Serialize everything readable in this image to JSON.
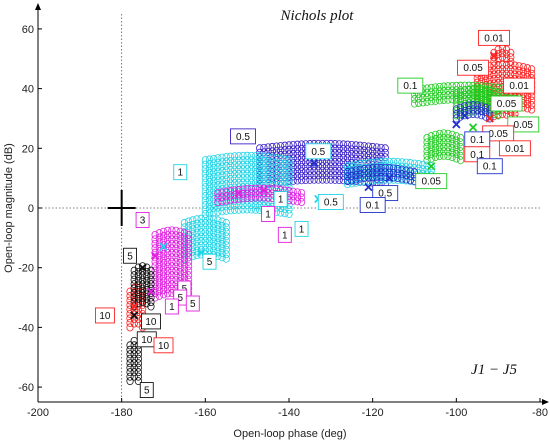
{
  "chart_data": {
    "type": "scatter",
    "title": "Nichols plot",
    "xlabel": "Open-loop phase (deg)",
    "ylabel": "Open-loop magnitude (dB)",
    "series_tag": "J1 − J5",
    "xlim": [
      -200,
      -80
    ],
    "ylim": [
      -65,
      65
    ],
    "xticks": [
      -200,
      -180,
      -160,
      -140,
      -120,
      -100,
      -80
    ],
    "yticks": [
      -60,
      -40,
      -20,
      0,
      20,
      40,
      60
    ],
    "critical_point": [
      -180,
      0
    ],
    "colors": {
      "red": "#ff2020",
      "green": "#22cc22",
      "blue": "#2233cc",
      "purple": "#3a22c8",
      "cyan": "#22d4e6",
      "magenta": "#e020e0",
      "black": "#111111"
    },
    "series": [
      {
        "color": "red",
        "bands": [
          [
            -95,
            33,
            47,
            13
          ],
          [
            -92,
            30,
            40,
            6
          ],
          [
            -91,
            49,
            53,
            4
          ]
        ]
      },
      {
        "color": "green",
        "bands": [
          [
            -110,
            35,
            40,
            24
          ],
          [
            -100,
            31,
            39,
            10
          ],
          [
            -107,
            16,
            24,
            8
          ]
        ]
      },
      {
        "color": "blue",
        "bands": [
          [
            -100,
            30,
            33,
            8
          ]
        ]
      },
      {
        "color": "purple",
        "bands": [
          [
            -147,
            8,
            20,
            30
          ]
        ]
      },
      {
        "color": "cyan",
        "bands": [
          [
            -160,
            -2,
            16,
            20
          ],
          [
            -126,
            8,
            14,
            20
          ],
          [
            -165,
            -17,
            -5,
            10
          ]
        ]
      },
      {
        "color": "blue",
        "bands": [
          [
            -126,
            9,
            12,
            16
          ]
        ]
      },
      {
        "color": "magenta",
        "bands": [
          [
            -157,
            2,
            6,
            20
          ],
          [
            -172,
            -30,
            -8,
            8
          ]
        ]
      },
      {
        "color": "red",
        "bands": [
          [
            -178,
            -40,
            -28,
            3
          ]
        ]
      },
      {
        "color": "black",
        "bands": [
          [
            -177,
            -33,
            -20,
            4
          ],
          [
            -178,
            -58,
            -46,
            2
          ]
        ]
      }
    ],
    "crosses": [
      {
        "x": -91,
        "y": 51,
        "color": "red"
      },
      {
        "x": -92,
        "y": 30,
        "color": "red"
      },
      {
        "x": -98,
        "y": 31,
        "color": "blue"
      },
      {
        "x": -100,
        "y": 28,
        "color": "blue"
      },
      {
        "x": -96,
        "y": 27,
        "color": "green"
      },
      {
        "x": -106,
        "y": 14,
        "color": "green"
      },
      {
        "x": -116,
        "y": 10,
        "color": "blue"
      },
      {
        "x": -121,
        "y": 7,
        "color": "blue"
      },
      {
        "x": -134,
        "y": 15,
        "color": "blue"
      },
      {
        "x": -133,
        "y": 3,
        "color": "cyan"
      },
      {
        "x": -146,
        "y": 6,
        "color": "magenta"
      },
      {
        "x": -152,
        "y": 5,
        "color": "magenta"
      },
      {
        "x": -161,
        "y": -15,
        "color": "cyan"
      },
      {
        "x": -170,
        "y": -13,
        "color": "cyan"
      },
      {
        "x": -172,
        "y": -16,
        "color": "magenta"
      },
      {
        "x": -175,
        "y": -20,
        "color": "black"
      },
      {
        "x": -173,
        "y": -28,
        "color": "magenta"
      },
      {
        "x": -177,
        "y": -33,
        "color": "red"
      },
      {
        "x": -177,
        "y": -36,
        "color": "black"
      }
    ],
    "annotations": [
      {
        "text": "0.01",
        "x": -91,
        "y": 57,
        "color": "red"
      },
      {
        "text": "0.05",
        "x": -96,
        "y": 47,
        "color": "red"
      },
      {
        "text": "0.01",
        "x": -85,
        "y": 41,
        "color": "red"
      },
      {
        "text": "0.1",
        "x": -111,
        "y": 41,
        "color": "green"
      },
      {
        "text": "0.05",
        "x": -88,
        "y": 35,
        "color": "green"
      },
      {
        "text": "0.05",
        "x": -84,
        "y": 28,
        "color": "green"
      },
      {
        "text": "0.05",
        "x": -90,
        "y": 25,
        "color": "red"
      },
      {
        "text": "0.1",
        "x": -95,
        "y": 23,
        "color": "blue"
      },
      {
        "text": "0.01",
        "x": -86,
        "y": 20,
        "color": "red"
      },
      {
        "text": "0.1",
        "x": -95,
        "y": 18,
        "color": "red"
      },
      {
        "text": "0.1",
        "x": -92,
        "y": 14,
        "color": "blue"
      },
      {
        "text": "0.05",
        "x": -106,
        "y": 9,
        "color": "green"
      },
      {
        "text": "0.5",
        "x": -151,
        "y": 24,
        "color": "purple"
      },
      {
        "text": "0.5",
        "x": -133,
        "y": 19,
        "color": "cyan"
      },
      {
        "text": "0.5",
        "x": -117,
        "y": 5,
        "color": "blue"
      },
      {
        "text": "0.5",
        "x": -130,
        "y": 2,
        "color": "cyan"
      },
      {
        "text": "0.1",
        "x": -120,
        "y": 1,
        "color": "blue"
      },
      {
        "text": "1",
        "x": -166,
        "y": 12,
        "color": "cyan"
      },
      {
        "text": "1",
        "x": -142,
        "y": 3,
        "color": "cyan"
      },
      {
        "text": "1",
        "x": -145,
        "y": -2,
        "color": "magenta"
      },
      {
        "text": "1",
        "x": -137,
        "y": -7,
        "color": "cyan"
      },
      {
        "text": "1",
        "x": -141,
        "y": -9,
        "color": "magenta"
      },
      {
        "text": "3",
        "x": -175,
        "y": -4,
        "color": "magenta"
      },
      {
        "text": "5",
        "x": -178,
        "y": -16,
        "color": "black"
      },
      {
        "text": "5",
        "x": -159,
        "y": -18,
        "color": "cyan"
      },
      {
        "text": "5",
        "x": -165,
        "y": -27,
        "color": "magenta"
      },
      {
        "text": "5",
        "x": -166,
        "y": -30,
        "color": "magenta"
      },
      {
        "text": "5",
        "x": -163,
        "y": -32,
        "color": "magenta"
      },
      {
        "text": "1",
        "x": -168,
        "y": -33,
        "color": "magenta"
      },
      {
        "text": "10",
        "x": -184,
        "y": -36,
        "color": "red"
      },
      {
        "text": "10",
        "x": -173,
        "y": -38,
        "color": "black"
      },
      {
        "text": "10",
        "x": -174,
        "y": -44,
        "color": "black"
      },
      {
        "text": "10",
        "x": -170,
        "y": -46,
        "color": "red"
      },
      {
        "text": "5",
        "x": -174,
        "y": -61,
        "color": "black"
      }
    ]
  }
}
